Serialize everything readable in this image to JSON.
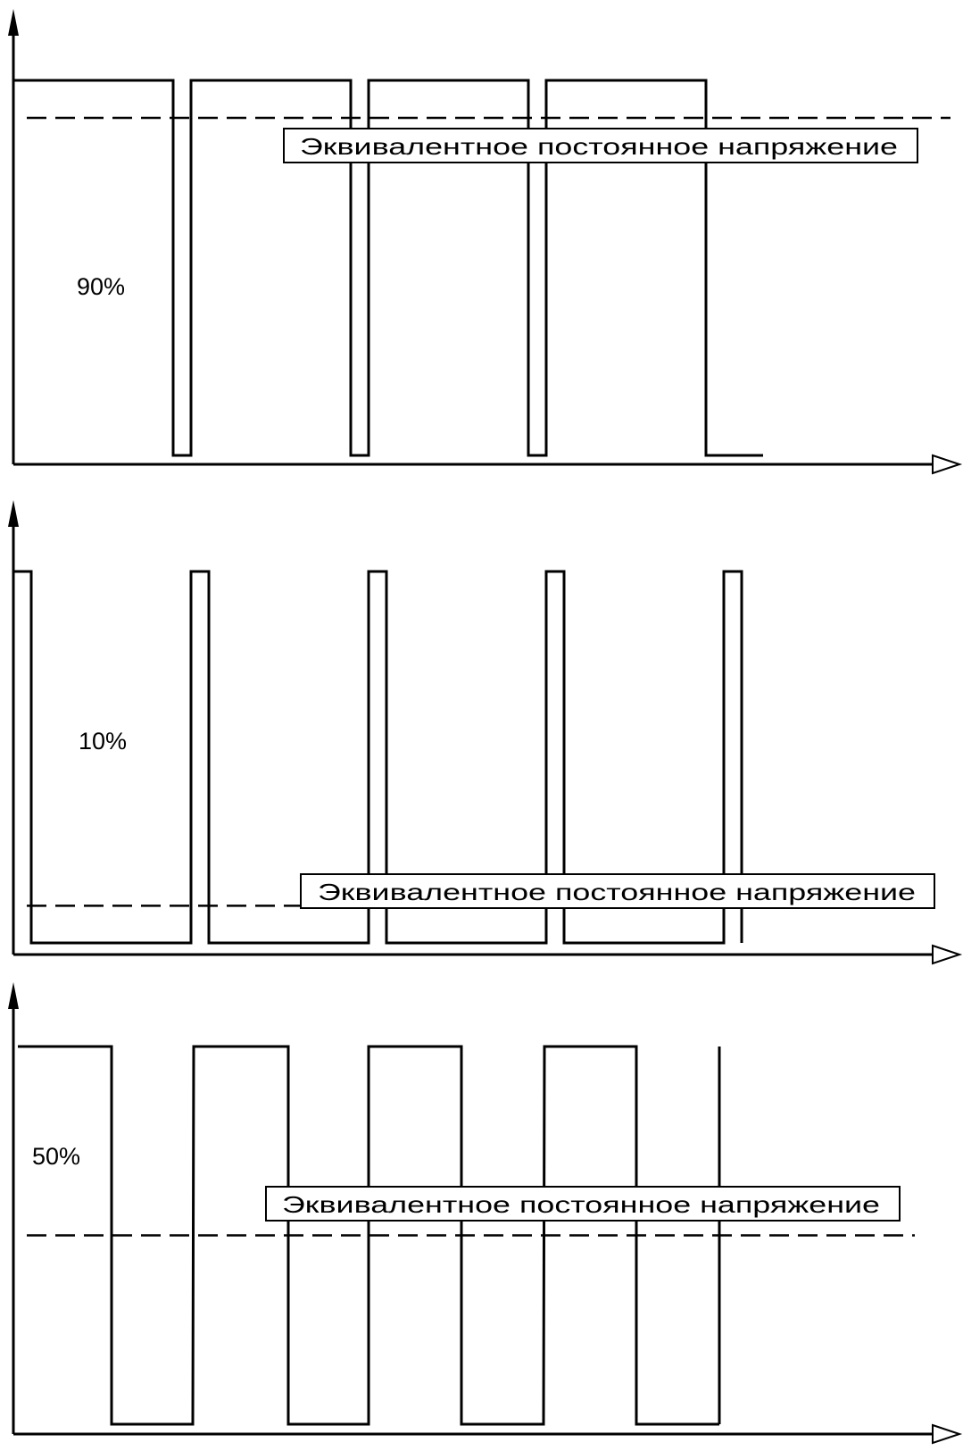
{
  "panels": [
    {
      "id": "duty-90",
      "duty_label": "90%",
      "duty_cycle": 0.9,
      "equivalent_label": "Эквивалентное постоянное напряжение",
      "equivalent_level": 0.9
    },
    {
      "id": "duty-10",
      "duty_label": "10%",
      "duty_cycle": 0.1,
      "equivalent_label": "Эквивалентное постоянное напряжение",
      "equivalent_level": 0.1
    },
    {
      "id": "duty-50",
      "duty_label": "50%",
      "duty_cycle": 0.5,
      "equivalent_label": "Эквивалентное постоянное напряжение",
      "equivalent_level": 0.5
    }
  ],
  "colors": {
    "line": "#000000",
    "background": "#ffffff"
  }
}
